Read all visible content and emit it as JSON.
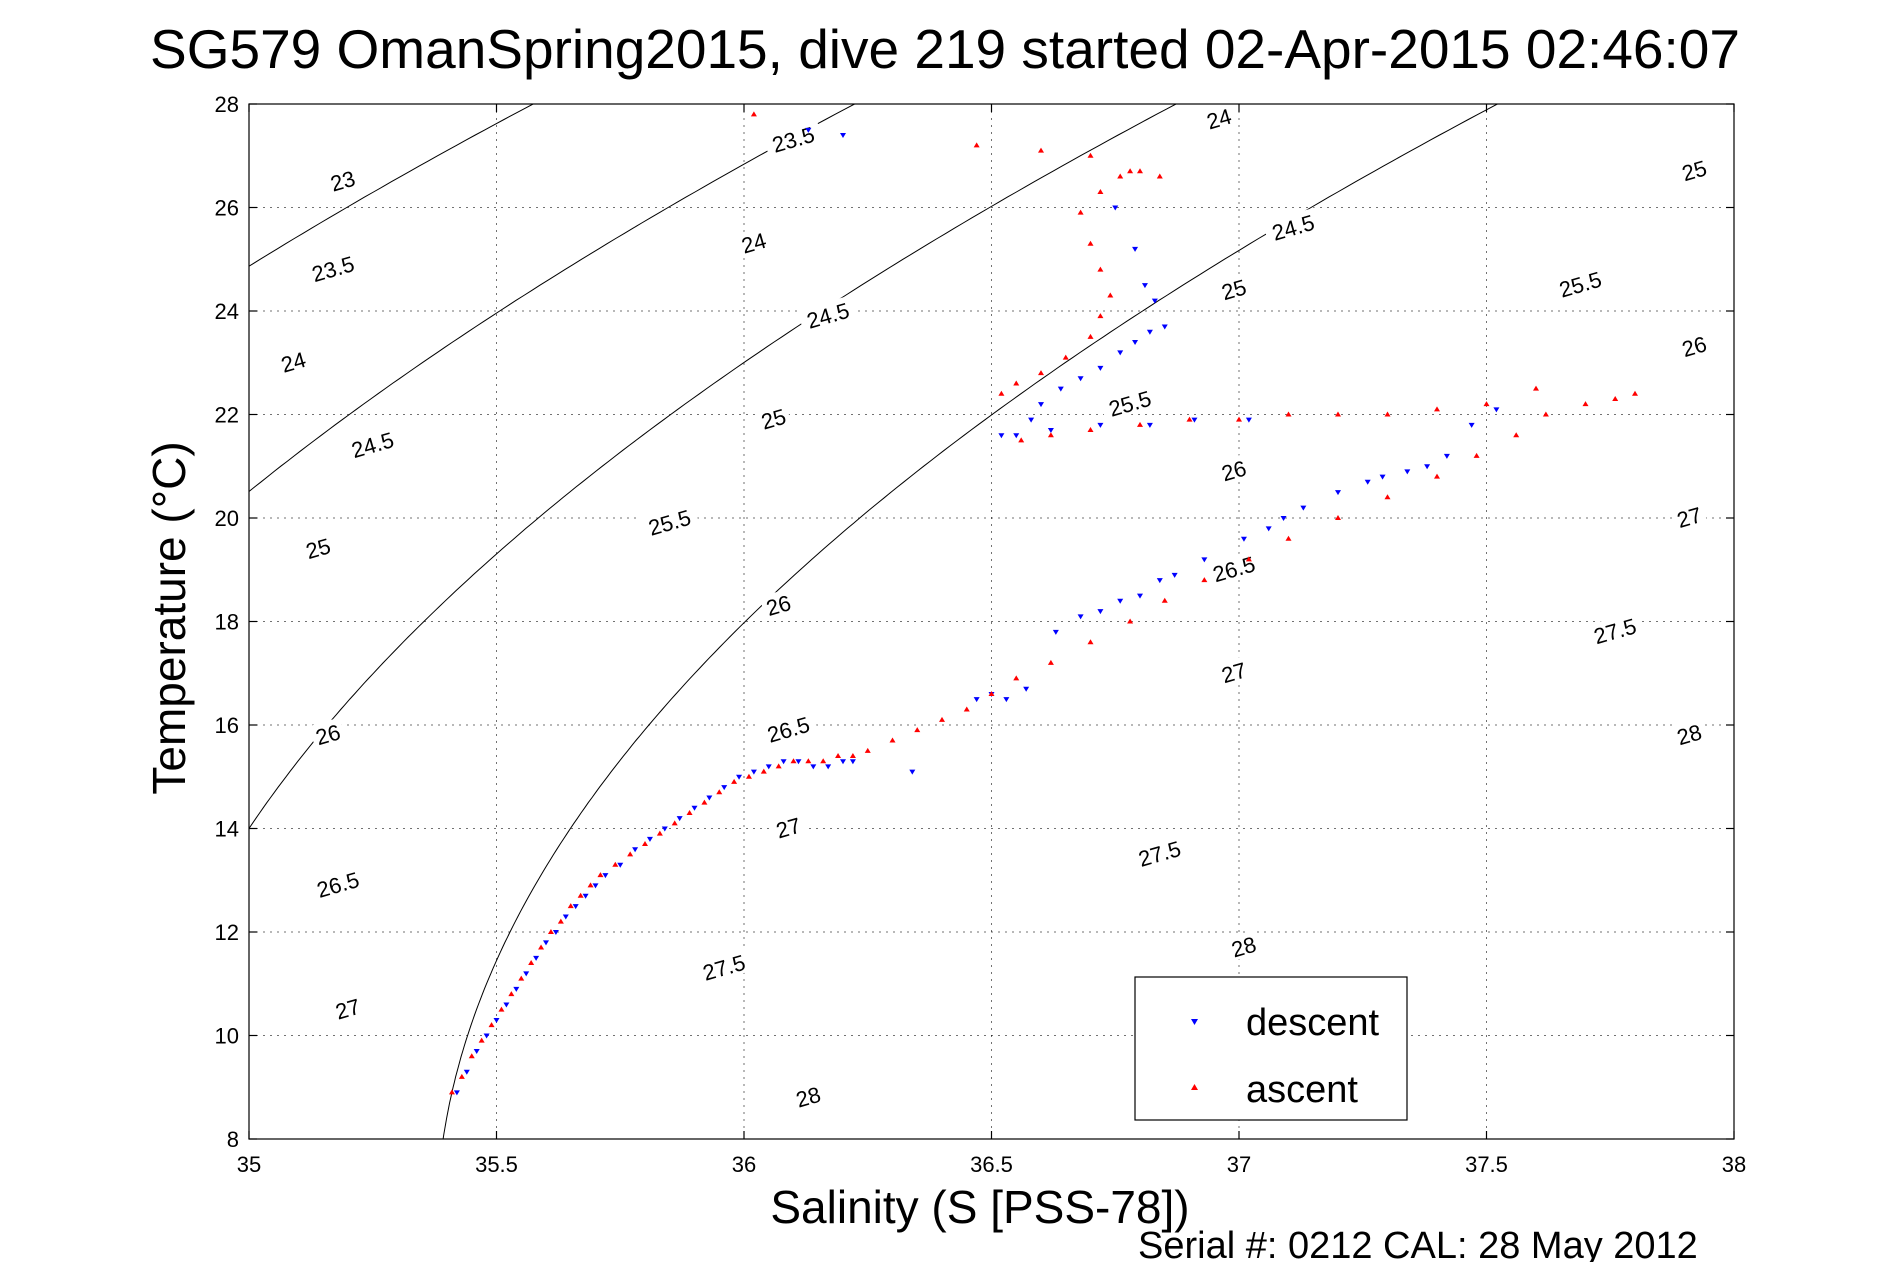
{
  "figure": {
    "title": "SG579 OmanSpring2015, dive 219 started 02-Apr-2015 02:46:07",
    "footer": "Serial #: 0212  CAL: 28 May 2012"
  },
  "chart_data": {
    "type": "scatter",
    "title": "SG579 OmanSpring2015, dive 219 started 02-Apr-2015 02:46:07",
    "xlabel": "Salinity (S [PSS-78])",
    "ylabel": "Temperature (°C)",
    "xlim": [
      35,
      38
    ],
    "ylim": [
      8,
      28
    ],
    "xticks": [
      35,
      35.5,
      36,
      36.5,
      37,
      37.5,
      38
    ],
    "xtick_labels": [
      "35",
      "35.5",
      "36",
      "36.5",
      "37",
      "37.5",
      "38"
    ],
    "yticks": [
      8,
      10,
      12,
      14,
      16,
      18,
      20,
      22,
      24,
      26,
      28
    ],
    "ytick_labels": [
      "8",
      "10",
      "12",
      "14",
      "16",
      "18",
      "20",
      "22",
      "24",
      "26",
      "28"
    ],
    "grid": true,
    "legend_position": "bottom-right",
    "colors": {
      "descent": "#0000ff",
      "ascent": "#ff0000",
      "contour": "#000000"
    },
    "density_contours": {
      "levels": [
        23,
        23.5,
        24,
        24.5,
        25,
        25.5,
        26,
        26.5,
        27,
        27.5,
        28
      ],
      "label_points": [
        {
          "label": "23",
          "s": 35.19,
          "t": 26.5
        },
        {
          "label": "23.5",
          "s": 35.17,
          "t": 24.8
        },
        {
          "label": "24",
          "s": 35.09,
          "t": 23.0
        },
        {
          "label": "24.5",
          "s": 35.25,
          "t": 21.4
        },
        {
          "label": "25",
          "s": 35.14,
          "t": 19.4
        },
        {
          "label": "26",
          "s": 35.16,
          "t": 15.8
        },
        {
          "label": "26.5",
          "s": 35.18,
          "t": 12.9
        },
        {
          "label": "27",
          "s": 35.2,
          "t": 10.5
        },
        {
          "label": "23.5",
          "s": 36.1,
          "t": 27.3
        },
        {
          "label": "24",
          "s": 36.02,
          "t": 25.3
        },
        {
          "label": "24.5",
          "s": 36.17,
          "t": 23.9
        },
        {
          "label": "25",
          "s": 36.06,
          "t": 21.9
        },
        {
          "label": "25.5",
          "s": 35.85,
          "t": 19.9
        },
        {
          "label": "26",
          "s": 36.07,
          "t": 18.3
        },
        {
          "label": "26.5",
          "s": 36.09,
          "t": 15.9
        },
        {
          "label": "27",
          "s": 36.09,
          "t": 14.0
        },
        {
          "label": "27.5",
          "s": 35.96,
          "t": 11.3
        },
        {
          "label": "28",
          "s": 36.13,
          "t": 8.8
        },
        {
          "label": "24",
          "s": 36.96,
          "t": 27.7
        },
        {
          "label": "24.5",
          "s": 37.11,
          "t": 25.6
        },
        {
          "label": "25",
          "s": 36.99,
          "t": 24.4
        },
        {
          "label": "25.5",
          "s": 36.78,
          "t": 22.2
        },
        {
          "label": "26",
          "s": 36.99,
          "t": 20.9
        },
        {
          "label": "26.5",
          "s": 36.99,
          "t": 19.0
        },
        {
          "label": "27",
          "s": 36.99,
          "t": 17.0
        },
        {
          "label": "27.5",
          "s": 36.84,
          "t": 13.5
        },
        {
          "label": "28",
          "s": 37.01,
          "t": 11.7
        },
        {
          "label": "25",
          "s": 37.92,
          "t": 26.7
        },
        {
          "label": "25.5",
          "s": 37.69,
          "t": 24.5
        },
        {
          "label": "26",
          "s": 37.92,
          "t": 23.3
        },
        {
          "label": "27",
          "s": 37.91,
          "t": 20.0
        },
        {
          "label": "27.5",
          "s": 37.76,
          "t": 17.8
        },
        {
          "label": "28",
          "s": 37.91,
          "t": 15.8
        }
      ]
    },
    "series": [
      {
        "name": "descent",
        "marker": "triangle-down",
        "x": [
          35.42,
          35.44,
          35.46,
          35.48,
          35.5,
          35.52,
          35.54,
          35.56,
          35.58,
          35.6,
          35.62,
          35.64,
          35.66,
          35.68,
          35.7,
          35.72,
          35.75,
          35.78,
          35.81,
          35.84,
          35.87,
          35.9,
          35.93,
          35.96,
          35.99,
          36.02,
          36.05,
          36.08,
          36.11,
          36.14,
          36.17,
          36.2,
          36.22,
          36.34,
          36.47,
          36.5,
          36.53,
          36.57,
          36.63,
          36.68,
          36.72,
          36.76,
          36.8,
          36.84,
          36.87,
          36.93,
          37.01,
          37.06,
          37.09,
          37.13,
          37.2,
          37.26,
          37.29,
          37.34,
          37.38,
          37.42,
          37.47,
          37.52,
          37.02,
          36.91,
          36.82,
          36.72,
          36.62,
          36.55,
          36.52,
          36.58,
          36.6,
          36.64,
          36.68,
          36.72,
          36.76,
          36.79,
          36.82,
          36.85,
          36.83,
          36.81,
          36.79,
          36.75,
          36.13,
          36.2
        ],
        "y": [
          8.9,
          9.3,
          9.7,
          10.0,
          10.3,
          10.6,
          10.9,
          11.2,
          11.5,
          11.8,
          12.0,
          12.3,
          12.5,
          12.7,
          12.9,
          13.1,
          13.3,
          13.6,
          13.8,
          14.0,
          14.2,
          14.4,
          14.6,
          14.8,
          15.0,
          15.1,
          15.2,
          15.3,
          15.3,
          15.2,
          15.2,
          15.3,
          15.3,
          15.1,
          16.5,
          16.6,
          16.5,
          16.7,
          17.8,
          18.1,
          18.2,
          18.4,
          18.5,
          18.8,
          18.9,
          19.2,
          19.6,
          19.8,
          20.0,
          20.2,
          20.5,
          20.7,
          20.8,
          20.9,
          21.0,
          21.2,
          21.8,
          22.1,
          21.9,
          21.9,
          21.8,
          21.8,
          21.7,
          21.6,
          21.6,
          21.9,
          22.2,
          22.5,
          22.7,
          22.9,
          23.2,
          23.4,
          23.6,
          23.7,
          24.2,
          24.5,
          25.2,
          26.0,
          27.5,
          27.4
        ]
      },
      {
        "name": "ascent",
        "marker": "triangle-up",
        "x": [
          35.41,
          35.43,
          35.45,
          35.47,
          35.49,
          35.51,
          35.53,
          35.55,
          35.57,
          35.59,
          35.61,
          35.63,
          35.65,
          35.67,
          35.69,
          35.71,
          35.74,
          35.77,
          35.8,
          35.83,
          35.86,
          35.89,
          35.92,
          35.95,
          35.98,
          36.01,
          36.04,
          36.07,
          36.1,
          36.13,
          36.16,
          36.19,
          36.22,
          36.25,
          36.3,
          36.35,
          36.4,
          36.45,
          36.5,
          36.55,
          36.62,
          36.7,
          36.78,
          36.85,
          36.93,
          37.02,
          37.1,
          37.2,
          37.3,
          37.4,
          37.48,
          37.56,
          37.62,
          37.7,
          37.76,
          37.8,
          37.6,
          37.5,
          37.4,
          37.3,
          37.2,
          37.1,
          37.0,
          36.9,
          36.8,
          36.7,
          36.62,
          36.56,
          36.52,
          36.55,
          36.6,
          36.65,
          36.7,
          36.72,
          36.74,
          36.72,
          36.7,
          36.68,
          36.72,
          36.76,
          36.78,
          36.8,
          36.84,
          36.7,
          36.6,
          36.47,
          36.02
        ],
        "y": [
          8.9,
          9.2,
          9.6,
          9.9,
          10.2,
          10.5,
          10.8,
          11.1,
          11.4,
          11.7,
          12.0,
          12.2,
          12.5,
          12.7,
          12.9,
          13.1,
          13.3,
          13.5,
          13.7,
          13.9,
          14.1,
          14.3,
          14.5,
          14.7,
          14.9,
          15.0,
          15.1,
          15.2,
          15.3,
          15.3,
          15.3,
          15.4,
          15.4,
          15.5,
          15.7,
          15.9,
          16.1,
          16.3,
          16.6,
          16.9,
          17.2,
          17.6,
          18.0,
          18.4,
          18.8,
          19.2,
          19.6,
          20.0,
          20.4,
          20.8,
          21.2,
          21.6,
          22.0,
          22.2,
          22.3,
          22.4,
          22.5,
          22.2,
          22.1,
          22.0,
          22.0,
          22.0,
          21.9,
          21.9,
          21.8,
          21.7,
          21.6,
          21.5,
          22.4,
          22.6,
          22.8,
          23.1,
          23.5,
          23.9,
          24.3,
          24.8,
          25.3,
          25.9,
          26.3,
          26.6,
          26.7,
          26.7,
          26.6,
          27.0,
          27.1,
          27.2,
          27.8
        ]
      }
    ]
  }
}
